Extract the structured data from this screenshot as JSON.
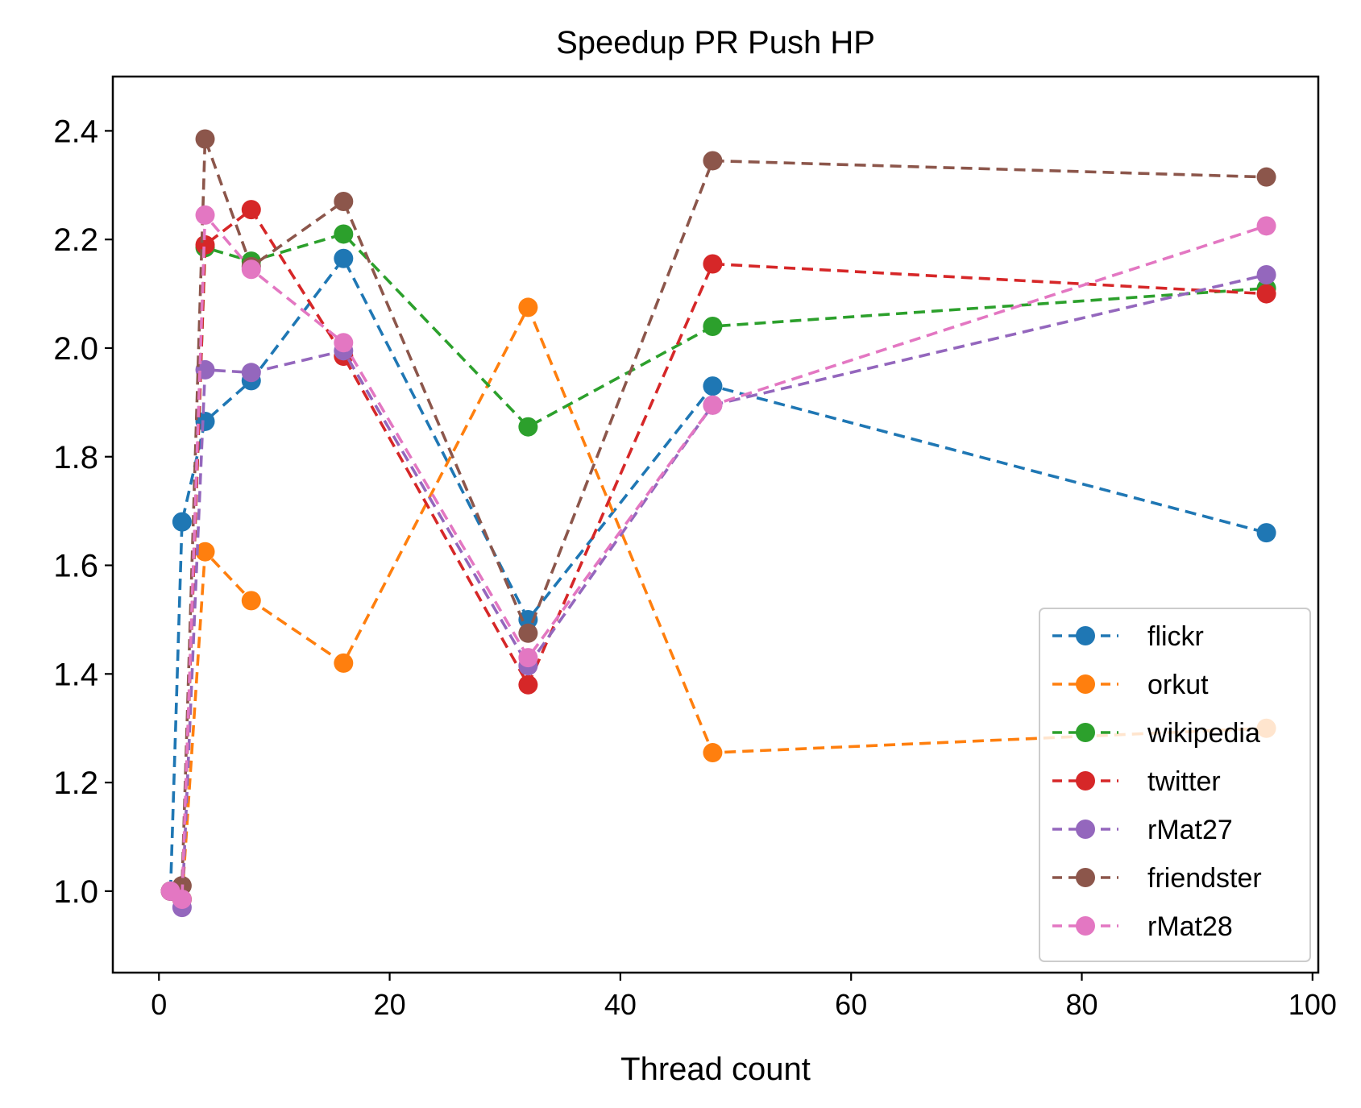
{
  "chart_data": {
    "type": "line",
    "title": "Speedup PR Push HP",
    "xlabel": "Thread count",
    "ylabel": "",
    "xlim": [
      -4,
      100.5
    ],
    "ylim": [
      0.85,
      2.5
    ],
    "xticks": [
      0,
      20,
      40,
      60,
      80,
      100
    ],
    "yticks": [
      1.0,
      1.2,
      1.4,
      1.6,
      1.8,
      2.0,
      2.2,
      2.4
    ],
    "xtick_labels": [
      "0",
      "20",
      "40",
      "60",
      "80",
      "100"
    ],
    "ytick_labels": [
      "1.0",
      "1.2",
      "1.4",
      "1.6",
      "1.8",
      "2.0",
      "2.2",
      "2.4"
    ],
    "grid": false,
    "legend_position": "lower-right",
    "line_style": "dashed",
    "marker": "circle",
    "x": [
      1,
      2,
      4,
      8,
      16,
      32,
      48,
      96
    ],
    "series": [
      {
        "name": "flickr",
        "color": "#1f77b4",
        "values": [
          1.0,
          1.68,
          1.865,
          1.94,
          2.165,
          1.5,
          1.93,
          1.66
        ]
      },
      {
        "name": "orkut",
        "color": "#ff7f0e",
        "values": [
          1.0,
          0.985,
          1.625,
          1.535,
          1.42,
          2.075,
          1.255,
          1.3
        ]
      },
      {
        "name": "wikipedia",
        "color": "#2ca02c",
        "values": [
          1.0,
          0.985,
          2.185,
          2.16,
          2.21,
          1.855,
          2.04,
          2.11
        ]
      },
      {
        "name": "twitter",
        "color": "#d62728",
        "values": [
          1.0,
          0.985,
          2.19,
          2.255,
          1.985,
          1.38,
          2.155,
          2.1
        ]
      },
      {
        "name": "rMat27",
        "color": "#9467bd",
        "values": [
          1.0,
          0.97,
          1.96,
          1.955,
          1.995,
          1.415,
          1.895,
          2.135
        ]
      },
      {
        "name": "friendster",
        "color": "#8c564b",
        "values": [
          1.0,
          1.01,
          2.385,
          2.15,
          2.27,
          1.475,
          2.345,
          2.315
        ]
      },
      {
        "name": "rMat28",
        "color": "#e377c2",
        "values": [
          1.0,
          0.985,
          2.245,
          2.145,
          2.01,
          1.43,
          1.895,
          2.225
        ]
      }
    ]
  }
}
